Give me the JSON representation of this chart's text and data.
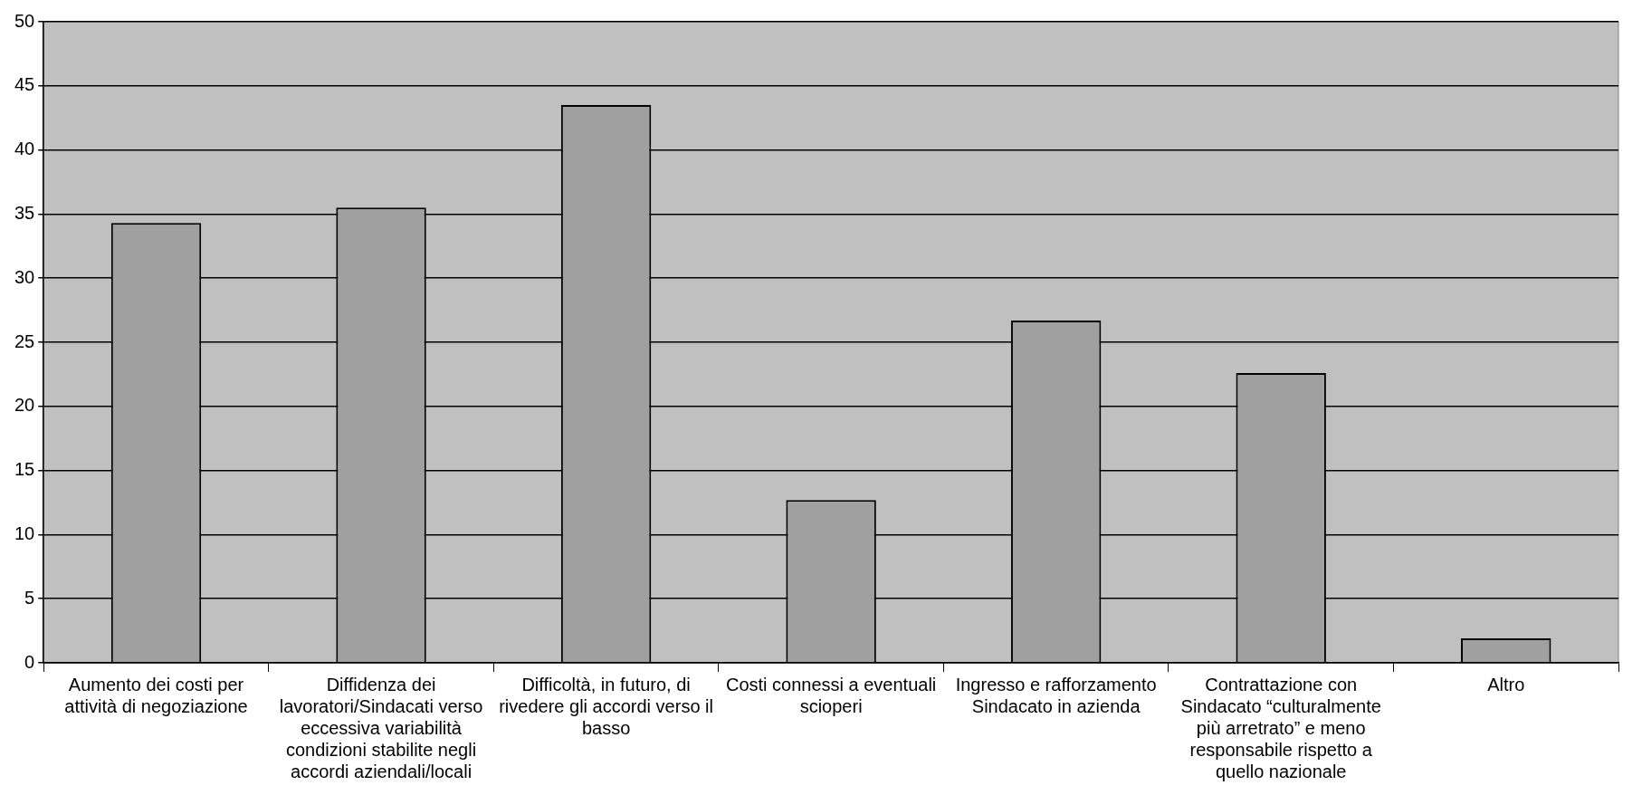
{
  "chart_data": {
    "type": "bar",
    "categories": [
      "Aumento dei costi per attività di negoziazione",
      "Diffidenza dei lavoratori/Sindacati verso eccessiva variabilità condizioni stabilite negli accordi aziendali/locali",
      "Difficoltà, in futuro, di rivedere gli accordi verso il basso",
      "Costi connessi a eventuali scioperi",
      "Ingresso e rafforzamento Sindacato in azienda",
      "Contrattazione con Sindacato “culturalmente più arretrato” e meno responsabile rispetto a quello nazionale",
      "Altro"
    ],
    "values": [
      34.3,
      35.5,
      43.5,
      12.7,
      26.7,
      22.6,
      1.9
    ],
    "color": "#a0a0a0",
    "ylim": [
      0,
      50
    ],
    "yticks": [
      0,
      5,
      10,
      15,
      20,
      25,
      30,
      35,
      40,
      45,
      50
    ],
    "grid": "y",
    "legend": false
  }
}
